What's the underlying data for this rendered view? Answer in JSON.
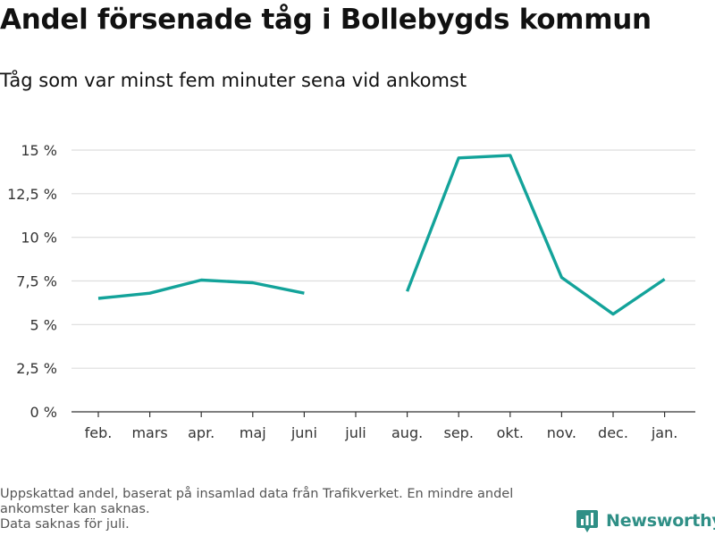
{
  "title": "Andel försenade tåg i Bollebygds kommun",
  "subtitle": "Tåg som var minst fem minuter sena vid ankomst",
  "footnote": {
    "line1": "Uppskattad andel, baserat på insamlad data från Trafikverket. En mindre andel ankomster kan saknas.",
    "line2": "Data saknas för juli."
  },
  "brand": {
    "name": "Newsworthy",
    "color": "#2f8f86",
    "icon": "newsworthy-logo-icon"
  },
  "colors": {
    "line": "#13a39a",
    "grid": "#dddddd",
    "axis": "#333333"
  },
  "chart_data": {
    "type": "line",
    "categories": [
      "feb.",
      "mars",
      "apr.",
      "maj",
      "juni",
      "juli",
      "aug.",
      "sep.",
      "okt.",
      "nov.",
      "dec.",
      "jan."
    ],
    "series": [
      {
        "values": [
          6.5,
          6.8,
          7.55,
          7.4,
          6.8,
          null,
          6.9,
          14.55,
          14.7,
          7.7,
          5.6,
          7.6
        ]
      }
    ],
    "yticks": [
      "0 %",
      "2,5 %",
      "5 %",
      "7,5 %",
      "10 %",
      "12,5 %",
      "15 %"
    ],
    "ytick_values": [
      0,
      2.5,
      5,
      7.5,
      10,
      12.5,
      15
    ],
    "ylim": [
      0,
      15
    ],
    "xlabel": "",
    "ylabel": "",
    "grid": true,
    "legend": "none"
  }
}
